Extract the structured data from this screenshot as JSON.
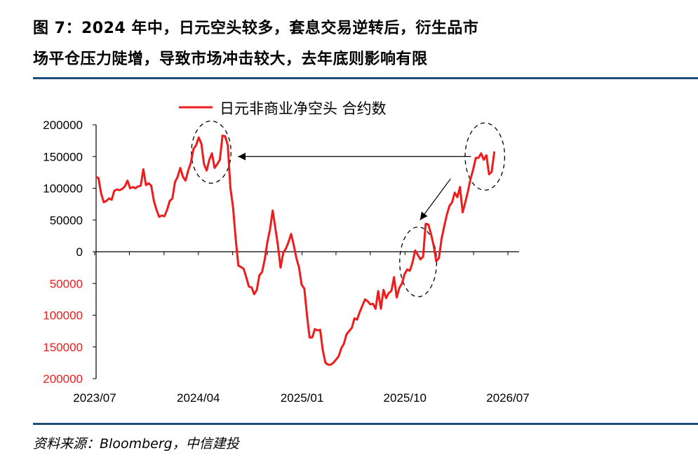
{
  "figure": {
    "title_line1": "图 7：2024 年中，日元空头较多，套息交易逆转后，衍生品市",
    "title_line2": "场平仓压力陡增，导致市场冲击较大，去年底则影响有限",
    "source": "资料来源：Bloomberg，中信建投"
  },
  "colors": {
    "line": "#ee1c1c",
    "axis": "#000000",
    "negative_labels": "#ee1c1c",
    "rule": "#1f4e79"
  },
  "chart_data": {
    "type": "line",
    "title": "",
    "xlabel": "",
    "ylabel": "",
    "ylim": [
      -200000,
      200000
    ],
    "yticks": [
      200000,
      150000,
      100000,
      50000,
      0,
      -50000,
      -100000,
      -150000,
      -200000
    ],
    "ytick_labels": [
      "200000",
      "150000",
      "100000",
      "50000",
      "0",
      "50000",
      "100000",
      "150000",
      "200000"
    ],
    "xlim": [
      "2023-07",
      "2026-09"
    ],
    "xtick_labels": [
      "2023/07",
      "2024/04",
      "2025/01",
      "2025/10",
      "2026/07"
    ],
    "grid": false,
    "legend_position": "top",
    "series": [
      {
        "name": "日元非商业净空头 合约数",
        "points": [
          [
            "2023-07-04",
            118000
          ],
          [
            "2023-07-11",
            116000
          ],
          [
            "2023-07-18",
            92000
          ],
          [
            "2023-07-25",
            78000
          ],
          [
            "2023-08-01",
            80000
          ],
          [
            "2023-08-08",
            84000
          ],
          [
            "2023-08-15",
            82000
          ],
          [
            "2023-08-22",
            96000
          ],
          [
            "2023-08-29",
            98000
          ],
          [
            "2023-09-05",
            97000
          ],
          [
            "2023-09-12",
            99000
          ],
          [
            "2023-09-19",
            103000
          ],
          [
            "2023-09-26",
            112000
          ],
          [
            "2023-10-03",
            100000
          ],
          [
            "2023-10-10",
            102000
          ],
          [
            "2023-10-17",
            100000
          ],
          [
            "2023-10-24",
            103000
          ],
          [
            "2023-10-31",
            104000
          ],
          [
            "2023-11-07",
            130000
          ],
          [
            "2023-11-14",
            105000
          ],
          [
            "2023-11-21",
            108000
          ],
          [
            "2023-11-28",
            104000
          ],
          [
            "2023-12-05",
            80000
          ],
          [
            "2023-12-12",
            66000
          ],
          [
            "2023-12-19",
            55000
          ],
          [
            "2023-12-26",
            57000
          ],
          [
            "2024-01-02",
            56000
          ],
          [
            "2024-01-09",
            66000
          ],
          [
            "2024-01-16",
            80000
          ],
          [
            "2024-01-23",
            84000
          ],
          [
            "2024-01-30",
            110000
          ],
          [
            "2024-02-06",
            118000
          ],
          [
            "2024-02-13",
            132000
          ],
          [
            "2024-02-20",
            118000
          ],
          [
            "2024-02-27",
            112000
          ],
          [
            "2024-03-05",
            128000
          ],
          [
            "2024-03-12",
            140000
          ],
          [
            "2024-03-19",
            162000
          ],
          [
            "2024-03-26",
            168000
          ],
          [
            "2024-04-02",
            180000
          ],
          [
            "2024-04-09",
            170000
          ],
          [
            "2024-04-16",
            138000
          ],
          [
            "2024-04-23",
            128000
          ],
          [
            "2024-04-30",
            145000
          ],
          [
            "2024-05-07",
            155000
          ],
          [
            "2024-05-14",
            132000
          ],
          [
            "2024-05-21",
            138000
          ],
          [
            "2024-05-28",
            145000
          ],
          [
            "2024-06-04",
            183000
          ],
          [
            "2024-06-11",
            182000
          ],
          [
            "2024-06-18",
            168000
          ],
          [
            "2024-06-25",
            100000
          ],
          [
            "2024-07-02",
            70000
          ],
          [
            "2024-07-09",
            20000
          ],
          [
            "2024-07-16",
            -22000
          ],
          [
            "2024-07-23",
            -24000
          ],
          [
            "2024-07-30",
            -27000
          ],
          [
            "2024-08-06",
            -40000
          ],
          [
            "2024-08-13",
            -55000
          ],
          [
            "2024-08-20",
            -56000
          ],
          [
            "2024-08-27",
            -67000
          ],
          [
            "2024-09-03",
            -60000
          ],
          [
            "2024-09-10",
            -37000
          ],
          [
            "2024-09-17",
            -32000
          ],
          [
            "2024-09-24",
            -12000
          ],
          [
            "2024-10-01",
            15000
          ],
          [
            "2024-10-08",
            35000
          ],
          [
            "2024-10-15",
            65000
          ],
          [
            "2024-10-22",
            38000
          ],
          [
            "2024-10-29",
            10000
          ],
          [
            "2024-11-05",
            -25000
          ],
          [
            "2024-11-12",
            -2000
          ],
          [
            "2024-11-19",
            5000
          ],
          [
            "2024-11-26",
            15000
          ],
          [
            "2024-12-03",
            28000
          ],
          [
            "2024-12-10",
            10000
          ],
          [
            "2024-12-17",
            -10000
          ],
          [
            "2024-12-24",
            -25000
          ],
          [
            "2024-12-31",
            -52000
          ],
          [
            "2025-01-07",
            -58000
          ],
          [
            "2025-01-14",
            -100000
          ],
          [
            "2025-01-21",
            -135000
          ],
          [
            "2025-01-28",
            -135000
          ],
          [
            "2025-02-04",
            -122000
          ],
          [
            "2025-02-11",
            -124000
          ],
          [
            "2025-02-18",
            -123000
          ],
          [
            "2025-02-25",
            -155000
          ],
          [
            "2025-03-04",
            -175000
          ],
          [
            "2025-03-11",
            -178000
          ],
          [
            "2025-03-18",
            -178000
          ],
          [
            "2025-03-25",
            -175000
          ],
          [
            "2025-04-01",
            -170000
          ],
          [
            "2025-04-08",
            -165000
          ],
          [
            "2025-04-15",
            -152000
          ],
          [
            "2025-04-22",
            -145000
          ],
          [
            "2025-04-29",
            -130000
          ],
          [
            "2025-05-06",
            -125000
          ],
          [
            "2025-05-13",
            -120000
          ],
          [
            "2025-05-20",
            -105000
          ],
          [
            "2025-05-27",
            -107000
          ],
          [
            "2025-06-03",
            -95000
          ],
          [
            "2025-06-10",
            -85000
          ],
          [
            "2025-06-17",
            -75000
          ],
          [
            "2025-06-24",
            -78000
          ],
          [
            "2025-07-01",
            -83000
          ],
          [
            "2025-07-08",
            -82000
          ],
          [
            "2025-07-15",
            -90000
          ],
          [
            "2025-07-22",
            -62000
          ],
          [
            "2025-07-29",
            -90000
          ],
          [
            "2025-08-05",
            -60000
          ],
          [
            "2025-08-12",
            -73000
          ],
          [
            "2025-08-19",
            -65000
          ],
          [
            "2025-08-26",
            -62000
          ],
          [
            "2025-09-02",
            -40000
          ],
          [
            "2025-09-09",
            -72000
          ],
          [
            "2025-09-16",
            -57000
          ],
          [
            "2025-09-23",
            -50000
          ],
          [
            "2025-09-30",
            -35000
          ],
          [
            "2025-10-07",
            -28000
          ],
          [
            "2025-10-14",
            -30000
          ],
          [
            "2025-10-21",
            -17000
          ],
          [
            "2025-10-28",
            2000
          ],
          [
            "2025-11-04",
            -5000
          ],
          [
            "2025-11-11",
            -12000
          ],
          [
            "2025-11-18",
            -8000
          ],
          [
            "2025-11-25",
            44000
          ],
          [
            "2025-12-02",
            43000
          ],
          [
            "2025-12-09",
            28000
          ],
          [
            "2025-12-16",
            10000
          ],
          [
            "2025-12-23",
            -15000
          ],
          [
            "2025-12-30",
            -10000
          ],
          [
            "2026-01-06",
            20000
          ],
          [
            "2026-01-13",
            40000
          ],
          [
            "2026-01-20",
            58000
          ],
          [
            "2026-01-27",
            72000
          ],
          [
            "2026-02-03",
            78000
          ],
          [
            "2026-02-10",
            93000
          ],
          [
            "2026-02-17",
            86000
          ],
          [
            "2026-02-24",
            102000
          ],
          [
            "2026-03-03",
            62000
          ],
          [
            "2026-03-10",
            78000
          ],
          [
            "2026-03-17",
            95000
          ],
          [
            "2026-03-24",
            115000
          ],
          [
            "2026-03-31",
            130000
          ],
          [
            "2026-04-07",
            148000
          ],
          [
            "2026-04-14",
            148000
          ],
          [
            "2026-04-21",
            155000
          ],
          [
            "2026-04-28",
            145000
          ],
          [
            "2026-05-05",
            152000
          ],
          [
            "2026-05-12",
            122000
          ],
          [
            "2026-05-19",
            126000
          ],
          [
            "2026-05-26",
            158000
          ]
        ]
      }
    ],
    "annotations": [
      {
        "type": "ellipse",
        "center": [
          "2024-05-05",
          157000
        ],
        "radii_weeks": 7.5,
        "radii_value": 49000
      },
      {
        "type": "ellipse",
        "center": [
          "2025-11-05",
          -16000
        ],
        "radii_weeks": 7.0,
        "radii_value": 55000
      },
      {
        "type": "ellipse",
        "center": [
          "2026-05-01",
          150000
        ],
        "radii_weeks": 7.5,
        "radii_value": 53000
      },
      {
        "type": "arrow",
        "from": [
          "2026-03-25",
          150000
        ],
        "to": [
          "2024-07-15",
          150000
        ]
      },
      {
        "type": "arrow",
        "from": [
          "2026-01-30",
          115000
        ],
        "to": [
          "2025-11-10",
          50000
        ]
      }
    ]
  }
}
